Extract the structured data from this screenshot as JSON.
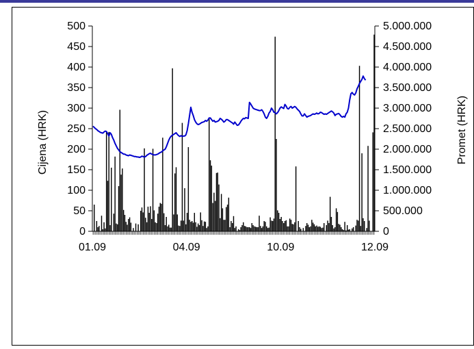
{
  "chart_data": {
    "type": "bar+line",
    "title": "",
    "xlabel": "",
    "ylabel_left": "Cijena (HRK)",
    "ylabel_right": "Promet (HRK)",
    "x_tick_labels": [
      "01.09",
      "04.09",
      "10.09",
      "12.09"
    ],
    "left_axis": {
      "min": 0,
      "max": 500,
      "ticks": [
        0,
        50,
        100,
        150,
        200,
        250,
        300,
        350,
        400,
        450,
        500
      ],
      "tick_labels": [
        "0",
        "50",
        "100",
        "150",
        "200",
        "250",
        "300",
        "350",
        "400",
        "450",
        "500"
      ]
    },
    "right_axis": {
      "min": 0,
      "max": 5000000,
      "ticks": [
        0,
        500000,
        1000000,
        1500000,
        2000000,
        2500000,
        3000000,
        3500000,
        4000000,
        4500000,
        5000000
      ],
      "tick_labels": [
        "0",
        "500.000",
        "1.000.000",
        "1.500.000",
        "2.000.000",
        "2.500.000",
        "3.000.000",
        "3.500.000",
        "4.000.000",
        "4.500.000",
        "5.000.000"
      ]
    },
    "grid": false,
    "legend": "none",
    "series": [
      {
        "type": "line",
        "axis": "left",
        "color": "#0000cc",
        "values": [
          256,
          253,
          250,
          248,
          245,
          243,
          241,
          240,
          239,
          242,
          244,
          243,
          238,
          232,
          240,
          236,
          228,
          222,
          214,
          208,
          202,
          198,
          194,
          192,
          190,
          188,
          188,
          186,
          185,
          184,
          186,
          185,
          184,
          183,
          182,
          182,
          181,
          181,
          180,
          181,
          183,
          182,
          181,
          182,
          185,
          187,
          189,
          190,
          188,
          187,
          186,
          186,
          187,
          188,
          190,
          192,
          193,
          196,
          198,
          200,
          206,
          214,
          222,
          228,
          232,
          234,
          236,
          238,
          240,
          236,
          233,
          231,
          233,
          231,
          232,
          232,
          235,
          245,
          262,
          282,
          302,
          290,
          282,
          272,
          266,
          262,
          260,
          261,
          263,
          265,
          266,
          267,
          270,
          268,
          271,
          276,
          276,
          272,
          268,
          270,
          266,
          267,
          268,
          270,
          275,
          273,
          270,
          266,
          268,
          272,
          272,
          270,
          268,
          266,
          264,
          261,
          266,
          262,
          258,
          259,
          263,
          268,
          272,
          275,
          274,
          277,
          276,
          275,
          314,
          310,
          305,
          300,
          298,
          297,
          296,
          295,
          294,
          294,
          296,
          292,
          286,
          278,
          275,
          280,
          288,
          292,
          300,
          296,
          290,
          289,
          286,
          289,
          294,
          300,
          303,
          301,
          299,
          309,
          305,
          299,
          298,
          302,
          304,
          300,
          302,
          304,
          302,
          298,
          295,
          292,
          286,
          281,
          281,
          286,
          282,
          278,
          280,
          281,
          282,
          284,
          286,
          285,
          286,
          288,
          286,
          287,
          290,
          289,
          287,
          285,
          286,
          285,
          287,
          289,
          291,
          293,
          291,
          288,
          282,
          285,
          286,
          287,
          284,
          280,
          278,
          280,
          278,
          286,
          290,
          300,
          320,
          335,
          338,
          334,
          332,
          337,
          347,
          353,
          360,
          365,
          370,
          378,
          372,
          368
        ]
      },
      {
        "type": "bar",
        "axis": "right",
        "color": "#000000",
        "values": [
          0,
          650000,
          0,
          250000,
          100000,
          130000,
          0,
          380000,
          50000,
          220000,
          70000,
          2440000,
          1230000,
          2420000,
          150000,
          1550000,
          0,
          430000,
          1820000,
          190000,
          170000,
          1100000,
          2960000,
          1380000,
          1530000,
          520000,
          400000,
          230000,
          160000,
          300000,
          340000,
          210000,
          0,
          80000,
          0,
          190000,
          0,
          170000,
          0,
          500000,
          580000,
          460000,
          2020000,
          330000,
          220000,
          600000,
          450000,
          610000,
          300000,
          2010000,
          510000,
          220000,
          200000,
          430000,
          600000,
          690000,
          670000,
          2280000,
          440000,
          150000,
          350000,
          120000,
          160000,
          90000,
          90000,
          3970000,
          410000,
          1410000,
          1560000,
          410000,
          140000,
          130000,
          260000,
          2640000,
          260000,
          1050000,
          170000,
          450000,
          2050000,
          280000,
          230000,
          250000,
          210000,
          450000,
          220000,
          110000,
          190000,
          150000,
          460000,
          270000,
          130000,
          240000,
          230000,
          80000,
          120000,
          2760000,
          1730000,
          1600000,
          690000,
          940000,
          740000,
          1420000,
          1430000,
          1140000,
          320000,
          910000,
          560000,
          280000,
          280000,
          590000,
          650000,
          820000,
          100000,
          250000,
          200000,
          370000,
          80000,
          120000,
          0,
          50000,
          30000,
          100000,
          150000,
          220000,
          130000,
          120000,
          100000,
          100000,
          100000,
          80000,
          200000,
          150000,
          120000,
          110000,
          100000,
          100000,
          380000,
          130000,
          80000,
          120000,
          250000,
          230000,
          120000,
          80000,
          90000,
          340000,
          260000,
          250000,
          310000,
          4740000,
          2250000,
          510000,
          450000,
          300000,
          350000,
          250000,
          200000,
          250000,
          270000,
          120000,
          120000,
          310000,
          280000,
          180000,
          170000,
          220000,
          1580000,
          0,
          250000,
          100000,
          60000,
          0,
          80000,
          0,
          130000,
          200000,
          160000,
          100000,
          120000,
          280000,
          210000,
          170000,
          120000,
          140000,
          110000,
          120000,
          110000,
          80000,
          90000,
          200000,
          0,
          150000,
          260000,
          200000,
          840000,
          350000,
          150000,
          70000,
          100000,
          560000,
          470000,
          180000,
          160000,
          100000,
          50000,
          30000,
          230000,
          20000,
          150000,
          40000,
          50000,
          0,
          70000,
          100000,
          0,
          140000,
          280000,
          260000,
          4030000,
          130000,
          1900000,
          320000,
          250000,
          0,
          80000,
          2080000,
          260000,
          0,
          0,
          2410000,
          4790000
        ]
      }
    ]
  }
}
